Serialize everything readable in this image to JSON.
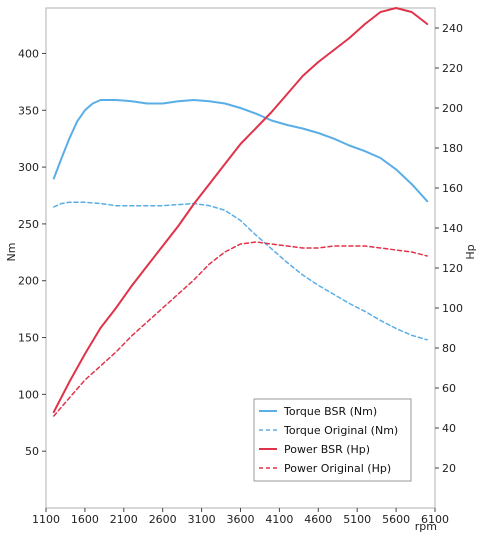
{
  "chart_data": {
    "type": "line",
    "xlabel": "rpm",
    "ylabel_left": "Nm",
    "ylabel_right": "Hp",
    "xlim": [
      1100,
      6100
    ],
    "xticks": [
      1100,
      1600,
      2100,
      2600,
      3100,
      3600,
      4100,
      4600,
      5100,
      5600,
      6100
    ],
    "ylim_left": [
      0,
      440
    ],
    "yticks_left": [
      50,
      100,
      150,
      200,
      250,
      300,
      350,
      400
    ],
    "ylim_right": [
      0,
      250
    ],
    "yticks_right": [
      20,
      40,
      60,
      80,
      100,
      120,
      140,
      160,
      180,
      200,
      220,
      240
    ],
    "grid": false,
    "legend_position": "bottom-right",
    "series": [
      {
        "name": "Torque BSR (Nm)",
        "axis": "left",
        "color": "#5aaee6",
        "style": "solid",
        "x": [
          1200,
          1300,
          1400,
          1500,
          1600,
          1700,
          1800,
          2000,
          2200,
          2400,
          2600,
          2800,
          3000,
          3200,
          3400,
          3600,
          3800,
          4000,
          4200,
          4400,
          4600,
          4800,
          5000,
          5200,
          5400,
          5600,
          5800,
          6000
        ],
        "values": [
          290,
          308,
          325,
          340,
          350,
          356,
          359,
          359,
          358,
          356,
          356,
          358,
          359,
          358,
          356,
          352,
          347,
          341,
          337,
          334,
          330,
          325,
          319,
          314,
          308,
          298,
          285,
          270
        ]
      },
      {
        "name": "Torque Original (Nm)",
        "axis": "left",
        "color": "#5aaee6",
        "style": "dashed",
        "x": [
          1200,
          1300,
          1400,
          1600,
          1800,
          2000,
          2200,
          2400,
          2600,
          2800,
          3000,
          3200,
          3400,
          3600,
          3800,
          4000,
          4200,
          4400,
          4600,
          4800,
          5000,
          5200,
          5400,
          5600,
          5800,
          6000
        ],
        "values": [
          265,
          268,
          269,
          269,
          268,
          266,
          266,
          266,
          266,
          267,
          268,
          266,
          262,
          253,
          240,
          228,
          216,
          205,
          196,
          188,
          180,
          173,
          165,
          158,
          152,
          148
        ]
      },
      {
        "name": "Power BSR (Hp)",
        "axis": "right",
        "color": "#e0334a",
        "style": "solid",
        "x": [
          1200,
          1400,
          1600,
          1800,
          2000,
          2200,
          2400,
          2600,
          2800,
          3000,
          3200,
          3400,
          3600,
          3800,
          4000,
          4200,
          4400,
          4600,
          4800,
          5000,
          5200,
          5400,
          5600,
          5800,
          6000
        ],
        "values": [
          48,
          63,
          77,
          90,
          100,
          111,
          121,
          131,
          141,
          152,
          162,
          172,
          182,
          190,
          198,
          207,
          216,
          223,
          229,
          235,
          242,
          248,
          250,
          248,
          242
        ]
      },
      {
        "name": "Power Original (Hp)",
        "axis": "right",
        "color": "#e0334a",
        "style": "dashed",
        "x": [
          1200,
          1400,
          1600,
          1800,
          2000,
          2200,
          2400,
          2600,
          2800,
          3000,
          3200,
          3400,
          3600,
          3800,
          4000,
          4200,
          4400,
          4600,
          4800,
          5000,
          5200,
          5400,
          5600,
          5800,
          6000
        ],
        "values": [
          46,
          55,
          64,
          71,
          78,
          86,
          93,
          100,
          107,
          114,
          122,
          128,
          132,
          133,
          132,
          131,
          130,
          130,
          131,
          131,
          131,
          130,
          129,
          128,
          126
        ]
      }
    ]
  }
}
